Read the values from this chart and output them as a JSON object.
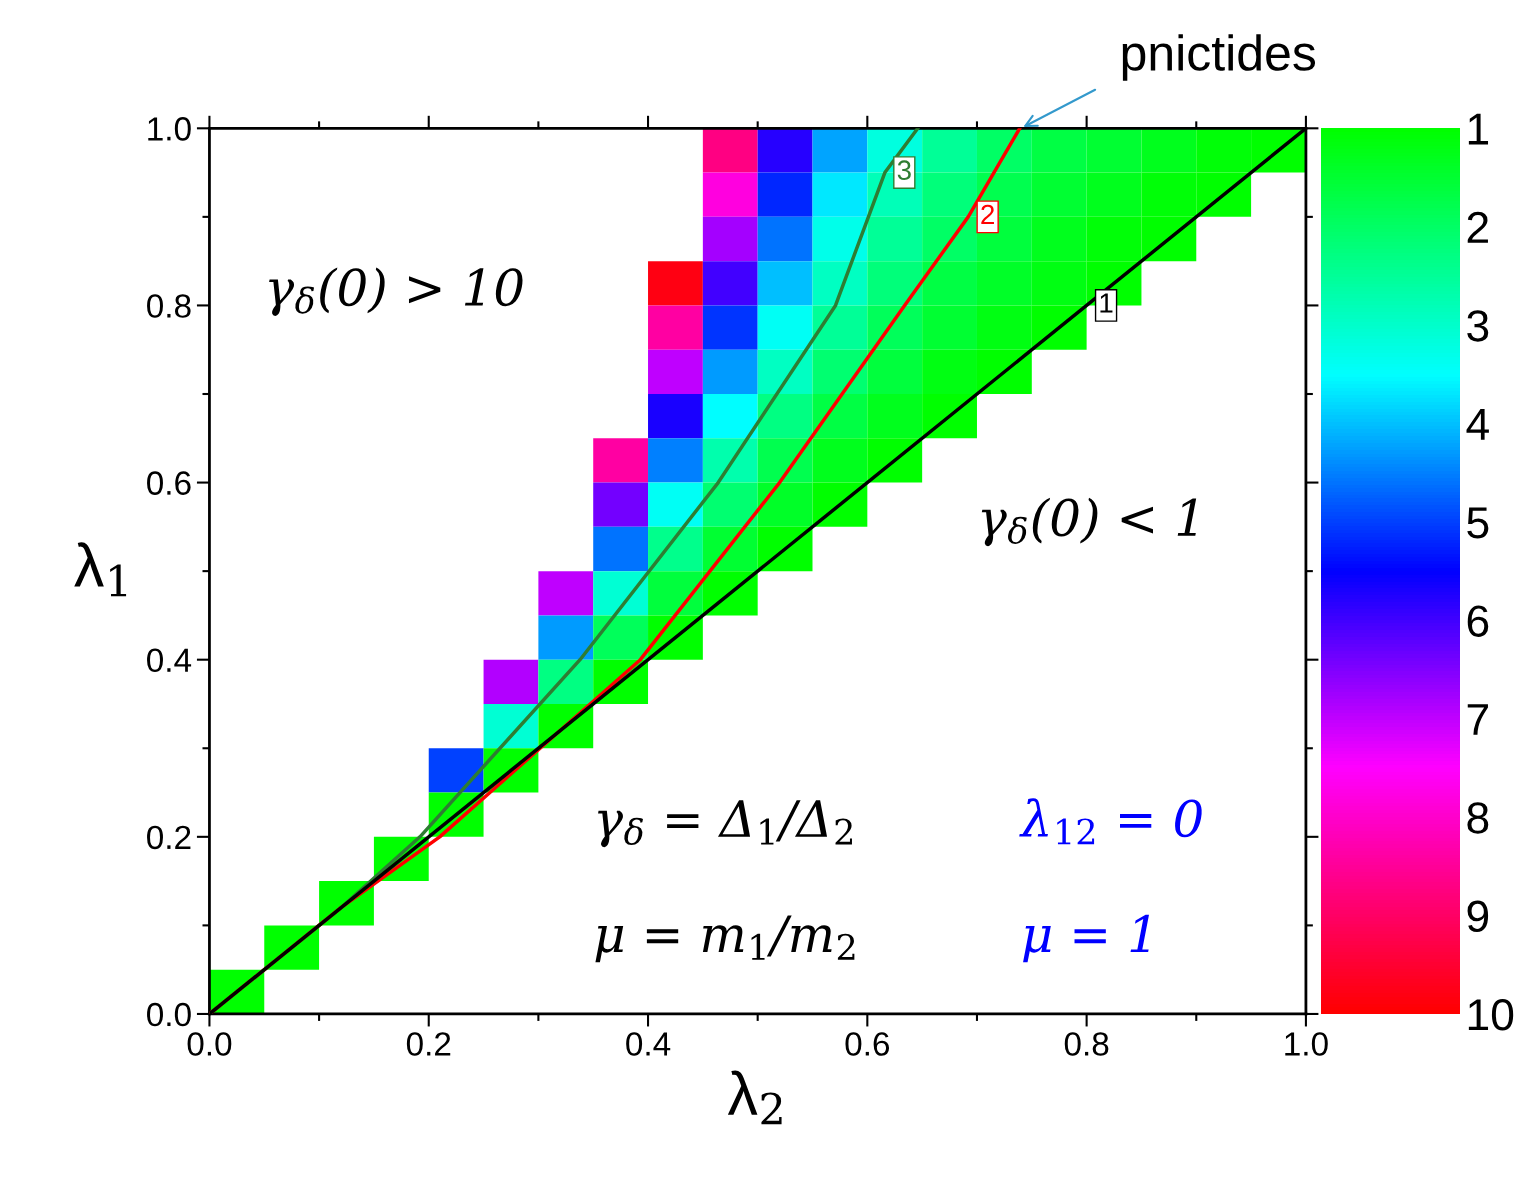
{
  "chart_data": {
    "type": "heatmap",
    "xlabel": "λ$_{2}$",
    "ylabel": "λ$_{1}$",
    "xlim": [
      0,
      1
    ],
    "ylim": [
      0,
      1
    ],
    "xticks": [
      {
        "value": 0,
        "label": "0.0"
      },
      {
        "value": 0.2,
        "label": "0.2"
      },
      {
        "value": 0.4,
        "label": "0.4"
      },
      {
        "value": 0.6,
        "label": "0.6"
      },
      {
        "value": 0.8,
        "label": "0.8"
      },
      {
        "value": 1,
        "label": "1.0"
      }
    ],
    "yticks": [
      {
        "value": 0,
        "label": "0.0"
      },
      {
        "value": 0.2,
        "label": "0.2"
      },
      {
        "value": 0.4,
        "label": "0.4"
      },
      {
        "value": 0.6,
        "label": "0.6"
      },
      {
        "value": 0.8,
        "label": "0.8"
      },
      {
        "value": 1,
        "label": "1.0"
      }
    ],
    "x": [
      0.025,
      0.075,
      0.125,
      0.175,
      0.225,
      0.275,
      0.325,
      0.375,
      0.425,
      0.475,
      0.525,
      0.575,
      0.625,
      0.675,
      0.725,
      0.775,
      0.825,
      0.875,
      0.925,
      0.975
    ],
    "y": [
      0.975,
      0.925,
      0.875,
      0.825,
      0.775,
      0.725,
      0.675,
      0.625,
      0.575,
      0.525,
      0.475,
      0.425,
      0.375,
      0.325,
      0.275,
      0.225,
      0.175,
      0.125,
      0.075,
      0.025
    ],
    "cells": [
      [
        null,
        null,
        null,
        null,
        null,
        null,
        null,
        null,
        null,
        8.7,
        5.8,
        4.2,
        3.2,
        2.5,
        2.0,
        1.7,
        1.5,
        1.3,
        1.1,
        1.0
      ],
      [
        null,
        null,
        null,
        null,
        null,
        null,
        null,
        null,
        null,
        7.8,
        5.2,
        3.7,
        2.8,
        2.2,
        1.8,
        1.5,
        1.3,
        1.1,
        1.0,
        null
      ],
      [
        null,
        null,
        null,
        null,
        null,
        null,
        null,
        null,
        null,
        6.8,
        4.6,
        3.3,
        2.5,
        2.0,
        1.6,
        1.3,
        1.1,
        1.0,
        null,
        null
      ],
      [
        null,
        null,
        null,
        null,
        null,
        null,
        null,
        null,
        9.8,
        6.0,
        4.0,
        2.9,
        2.2,
        1.7,
        1.4,
        1.2,
        1.0,
        null,
        null,
        null
      ],
      [
        null,
        null,
        null,
        null,
        null,
        null,
        null,
        null,
        8.4,
        5.1,
        3.4,
        2.5,
        1.9,
        1.5,
        1.2,
        1.0,
        null,
        null,
        null,
        null
      ],
      [
        null,
        null,
        null,
        null,
        null,
        null,
        null,
        null,
        7.0,
        4.3,
        2.9,
        2.1,
        1.6,
        1.2,
        1.0,
        null,
        null,
        null,
        null,
        null
      ],
      [
        null,
        null,
        null,
        null,
        null,
        null,
        null,
        null,
        5.7,
        3.5,
        2.3,
        1.7,
        1.3,
        1.0,
        null,
        null,
        null,
        null,
        null,
        null
      ],
      [
        null,
        null,
        null,
        null,
        null,
        null,
        null,
        8.4,
        4.5,
        2.7,
        1.8,
        1.3,
        1.0,
        null,
        null,
        null,
        null,
        null,
        null,
        null
      ],
      [
        null,
        null,
        null,
        null,
        null,
        null,
        null,
        6.4,
        3.4,
        2.1,
        1.4,
        1.0,
        null,
        null,
        null,
        null,
        null,
        null,
        null,
        null
      ],
      [
        null,
        null,
        null,
        null,
        null,
        null,
        null,
        4.6,
        2.4,
        1.5,
        1.0,
        null,
        null,
        null,
        null,
        null,
        null,
        null,
        null,
        null
      ],
      [
        null,
        null,
        null,
        null,
        null,
        null,
        7.0,
        3.1,
        1.6,
        1.0,
        null,
        null,
        null,
        null,
        null,
        null,
        null,
        null,
        null,
        null
      ],
      [
        null,
        null,
        null,
        null,
        null,
        null,
        4.3,
        1.9,
        1.0,
        null,
        null,
        null,
        null,
        null,
        null,
        null,
        null,
        null,
        null,
        null
      ],
      [
        null,
        null,
        null,
        null,
        null,
        6.9,
        2.3,
        1.0,
        null,
        null,
        null,
        null,
        null,
        null,
        null,
        null,
        null,
        null,
        null,
        null
      ],
      [
        null,
        null,
        null,
        null,
        null,
        3.1,
        1.0,
        null,
        null,
        null,
        null,
        null,
        null,
        null,
        null,
        null,
        null,
        null,
        null,
        null
      ],
      [
        null,
        null,
        null,
        null,
        5.0,
        1.0,
        null,
        null,
        null,
        null,
        null,
        null,
        null,
        null,
        null,
        null,
        null,
        null,
        null,
        null
      ],
      [
        null,
        null,
        null,
        null,
        1.0,
        null,
        null,
        null,
        null,
        null,
        null,
        null,
        null,
        null,
        null,
        null,
        null,
        null,
        null,
        null
      ],
      [
        null,
        null,
        null,
        1.0,
        null,
        null,
        null,
        null,
        null,
        null,
        null,
        null,
        null,
        null,
        null,
        null,
        null,
        null,
        null,
        null
      ],
      [
        null,
        null,
        1.0,
        null,
        null,
        null,
        null,
        null,
        null,
        null,
        null,
        null,
        null,
        null,
        null,
        null,
        null,
        null,
        null,
        null
      ],
      [
        null,
        1.0,
        null,
        null,
        null,
        null,
        null,
        null,
        null,
        null,
        null,
        null,
        null,
        null,
        null,
        null,
        null,
        null,
        null,
        null
      ],
      [
        1.0,
        null,
        null,
        null,
        null,
        null,
        null,
        null,
        null,
        null,
        null,
        null,
        null,
        null,
        null,
        null,
        null,
        null,
        null,
        null
      ]
    ],
    "clim": [
      10,
      1
    ],
    "cticks": [
      1,
      2,
      3,
      4,
      5,
      6,
      7,
      8,
      9,
      10
    ],
    "series": [
      {
        "type": "line",
        "name": "3",
        "color": "#2e7d32",
        "x": [
          0,
          0.12,
          0.192,
          0.338,
          0.464,
          0.571,
          0.616,
          0.646
        ],
        "values": [
          0,
          0.12,
          0.2,
          0.4,
          0.6,
          0.8,
          0.95,
          1.0
        ]
      },
      {
        "type": "line",
        "name": "2",
        "color": "#ff0000",
        "x": [
          0,
          0.12,
          0.21,
          0.393,
          0.52,
          0.634,
          0.692,
          0.739
        ],
        "values": [
          0,
          0.12,
          0.2,
          0.4,
          0.6,
          0.8,
          0.9,
          1.0
        ]
      },
      {
        "type": "line",
        "name": "1",
        "color": "#000000",
        "x": [
          0,
          0.8,
          1
        ],
        "values": [
          0,
          0.8,
          1
        ]
      }
    ],
    "annotations": [
      {
        "text": "pnictides",
        "x": 0.74,
        "y": 1.0
      },
      "γ$_{δ}$(0) > 10",
      "γ$_{δ}$(0) < 1",
      "γ$_{δ}$ = Δ$_{1}$/Δ$_{2}$",
      "μ = m$_{1}$/m$_{2}$",
      "λ$_{12}$ = 0",
      "μ = 1"
    ],
    "legend": false,
    "grid": false
  }
}
